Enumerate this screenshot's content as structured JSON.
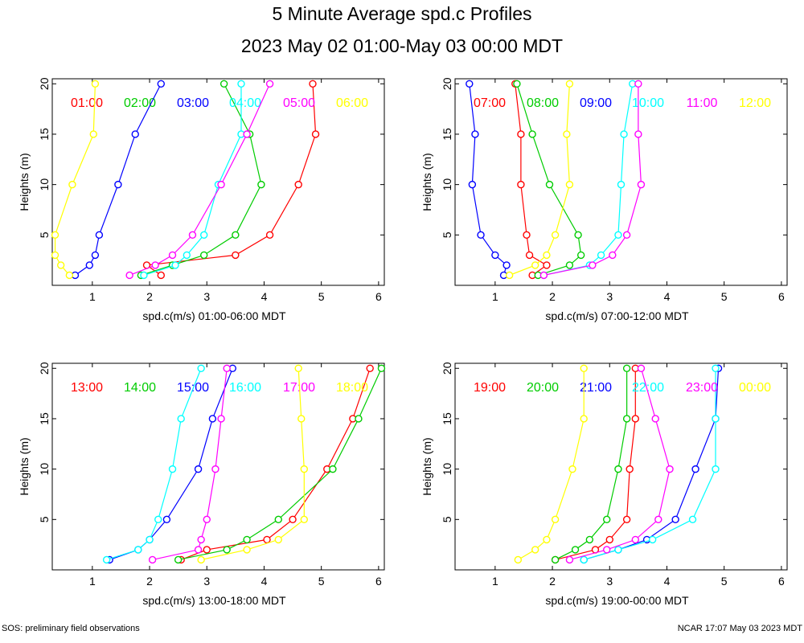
{
  "title": "5 Minute Average spd.c Profiles",
  "subtitle": "2023 May 02 01:00-May 03 00:00 MDT",
  "footer_left": "SOS: preliminary field observations",
  "footer_right": "NCAR 17:07 May 03 2023 MDT",
  "colors": [
    "#ff0000",
    "#00cc00",
    "#0000ff",
    "#00ffff",
    "#ff00ff",
    "#ffff00"
  ],
  "chart_data": [
    {
      "type": "line",
      "xlabel": "spd.c(m/s) 01:00-06:00 MDT",
      "ylabel": "Heights (m)",
      "xlim": [
        0.3,
        6.1
      ],
      "ylim": [
        0,
        20.5
      ],
      "xticks": [
        "1",
        "2",
        "3",
        "4",
        "5",
        "6"
      ],
      "yticks": [
        "5",
        "10",
        "15",
        "20"
      ],
      "heights": [
        1,
        2,
        3,
        5,
        10,
        15,
        20
      ],
      "series": [
        {
          "name": "01:00",
          "values": [
            2.2,
            1.95,
            3.5,
            4.1,
            4.6,
            4.9,
            4.85
          ]
        },
        {
          "name": "02:00",
          "values": [
            1.85,
            2.4,
            2.95,
            3.5,
            3.95,
            3.75,
            3.3
          ]
        },
        {
          "name": "03:00",
          "values": [
            0.7,
            0.95,
            1.05,
            1.12,
            1.45,
            1.75,
            2.2
          ]
        },
        {
          "name": "04:00",
          "values": [
            1.9,
            2.45,
            2.65,
            2.95,
            3.2,
            3.6,
            3.6
          ]
        },
        {
          "name": "05:00",
          "values": [
            1.65,
            2.1,
            2.4,
            2.75,
            3.25,
            3.7,
            4.1
          ]
        },
        {
          "name": "06:00",
          "values": [
            0.6,
            0.45,
            0.35,
            0.35,
            0.65,
            1.02,
            1.05
          ]
        }
      ]
    },
    {
      "type": "line",
      "xlabel": "spd.c(m/s) 07:00-12:00 MDT",
      "ylabel": "Heights (m)",
      "xlim": [
        0.3,
        6.1
      ],
      "ylim": [
        0,
        20.5
      ],
      "xticks": [
        "1",
        "2",
        "3",
        "4",
        "5",
        "6"
      ],
      "yticks": [
        "5",
        "10",
        "15",
        "20"
      ],
      "heights": [
        1,
        2,
        3,
        5,
        10,
        15,
        20
      ],
      "series": [
        {
          "name": "07:00",
          "values": [
            1.65,
            1.9,
            1.6,
            1.55,
            1.45,
            1.45,
            1.35
          ]
        },
        {
          "name": "08:00",
          "values": [
            1.75,
            2.3,
            2.5,
            2.45,
            1.95,
            1.65,
            1.38
          ]
        },
        {
          "name": "09:00",
          "values": [
            1.15,
            1.2,
            1.0,
            0.75,
            0.6,
            0.65,
            0.55
          ]
        },
        {
          "name": "10:00",
          "values": [
            1.85,
            2.65,
            2.85,
            3.15,
            3.2,
            3.25,
            3.4
          ]
        },
        {
          "name": "11:00",
          "values": [
            1.85,
            2.7,
            3.05,
            3.3,
            3.55,
            3.5,
            3.5
          ]
        },
        {
          "name": "12:00",
          "values": [
            1.25,
            1.7,
            1.9,
            2.05,
            2.3,
            2.25,
            2.3
          ]
        }
      ]
    },
    {
      "type": "line",
      "xlabel": "spd.c(m/s) 13:00-18:00 MDT",
      "ylabel": "Heights (m)",
      "xlim": [
        0.3,
        6.1
      ],
      "ylim": [
        0,
        20.5
      ],
      "xticks": [
        "1",
        "2",
        "3",
        "4",
        "5",
        "6"
      ],
      "yticks": [
        "5",
        "10",
        "15",
        "20"
      ],
      "heights": [
        1,
        2,
        3,
        5,
        10,
        15,
        20
      ],
      "series": [
        {
          "name": "13:00",
          "values": [
            2.55,
            3.0,
            4.05,
            4.5,
            5.1,
            5.55,
            5.85
          ]
        },
        {
          "name": "14:00",
          "values": [
            2.5,
            3.35,
            3.7,
            4.25,
            5.2,
            5.65,
            6.05
          ]
        },
        {
          "name": "15:00",
          "values": [
            1.3,
            1.8,
            2.0,
            2.3,
            2.85,
            3.1,
            3.45
          ]
        },
        {
          "name": "16:00",
          "values": [
            1.25,
            1.8,
            2.0,
            2.15,
            2.4,
            2.55,
            2.9
          ]
        },
        {
          "name": "17:00",
          "values": [
            2.05,
            2.85,
            2.9,
            3.0,
            3.15,
            3.25,
            3.35
          ]
        },
        {
          "name": "18:00",
          "values": [
            2.9,
            3.7,
            4.25,
            4.7,
            4.7,
            4.65,
            4.6
          ]
        }
      ]
    },
    {
      "type": "line",
      "xlabel": "spd.c(m/s) 19:00-00:00 MDT",
      "ylabel": "Heights (m)",
      "xlim": [
        0.3,
        6.1
      ],
      "ylim": [
        0,
        20.5
      ],
      "xticks": [
        "1",
        "2",
        "3",
        "4",
        "5",
        "6"
      ],
      "yticks": [
        "5",
        "10",
        "15",
        "20"
      ],
      "heights": [
        1,
        2,
        3,
        5,
        10,
        15,
        20
      ],
      "series": [
        {
          "name": "19:00",
          "values": [
            2.05,
            2.75,
            3.0,
            3.3,
            3.35,
            3.45,
            3.45
          ]
        },
        {
          "name": "20:00",
          "values": [
            2.05,
            2.4,
            2.65,
            2.95,
            3.15,
            3.3,
            3.3
          ]
        },
        {
          "name": "21:00",
          "values": [
            2.55,
            3.15,
            3.65,
            4.15,
            4.5,
            4.85,
            4.9
          ]
        },
        {
          "name": "22:00",
          "values": [
            2.55,
            3.15,
            3.75,
            4.45,
            4.85,
            4.85,
            4.85
          ]
        },
        {
          "name": "23:00",
          "values": [
            2.3,
            2.95,
            3.45,
            3.85,
            4.05,
            3.8,
            3.55
          ]
        },
        {
          "name": "00:00",
          "values": [
            1.4,
            1.7,
            1.9,
            2.05,
            2.35,
            2.55,
            2.55
          ]
        }
      ]
    }
  ]
}
